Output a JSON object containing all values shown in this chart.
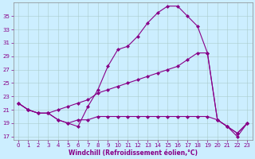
{
  "background_color": "#cceeff",
  "line_color": "#880088",
  "marker": "D",
  "marker_size": 2.0,
  "xlabel": "Windchill (Refroidissement éolien,°C)",
  "xlim": [
    -0.5,
    23.5
  ],
  "ylim": [
    16.5,
    37.0
  ],
  "yticks": [
    17,
    19,
    21,
    23,
    25,
    27,
    29,
    31,
    33,
    35
  ],
  "xticks": [
    0,
    1,
    2,
    3,
    4,
    5,
    6,
    7,
    8,
    9,
    10,
    11,
    12,
    13,
    14,
    15,
    16,
    17,
    18,
    19,
    20,
    21,
    22,
    23
  ],
  "lines": [
    {
      "x": [
        0,
        1,
        2,
        3,
        4,
        5,
        6,
        7,
        8,
        9,
        10,
        11,
        12,
        13,
        14,
        15,
        16,
        17,
        18,
        19,
        20,
        21,
        22,
        23
      ],
      "y": [
        22.0,
        21.0,
        20.5,
        20.5,
        19.5,
        19.0,
        18.5,
        21.5,
        24.0,
        27.5,
        30.0,
        30.5,
        32.0,
        34.0,
        35.5,
        36.5,
        36.5,
        35.0,
        33.5,
        29.5,
        19.5,
        18.5,
        17.0,
        19.0
      ]
    },
    {
      "x": [
        0,
        1,
        2,
        3,
        4,
        5,
        6,
        7,
        8,
        9,
        10,
        11,
        12,
        13,
        14,
        15,
        16,
        17,
        18,
        19,
        20,
        21,
        22,
        23
      ],
      "y": [
        22.0,
        21.0,
        20.5,
        20.5,
        21.0,
        21.5,
        22.0,
        22.5,
        23.5,
        24.0,
        24.5,
        25.0,
        25.5,
        26.0,
        26.5,
        27.0,
        27.5,
        28.5,
        29.5,
        29.5,
        19.5,
        18.5,
        17.5,
        19.0
      ]
    },
    {
      "x": [
        0,
        1,
        2,
        3,
        4,
        5,
        6,
        7,
        8,
        9,
        10,
        11,
        12,
        13,
        14,
        15,
        16,
        17,
        18,
        19,
        20,
        21,
        22,
        23
      ],
      "y": [
        22.0,
        21.0,
        20.5,
        20.5,
        19.5,
        19.0,
        19.5,
        19.5,
        20.0,
        20.0,
        20.0,
        20.0,
        20.0,
        20.0,
        20.0,
        20.0,
        20.0,
        20.0,
        20.0,
        20.0,
        19.5,
        18.5,
        17.5,
        19.0
      ]
    }
  ],
  "grid_color": "#aacccc",
  "spine_color": "#888888",
  "tick_color": "#880088",
  "label_fontsize": 5.5,
  "tick_fontsize": 5.0
}
